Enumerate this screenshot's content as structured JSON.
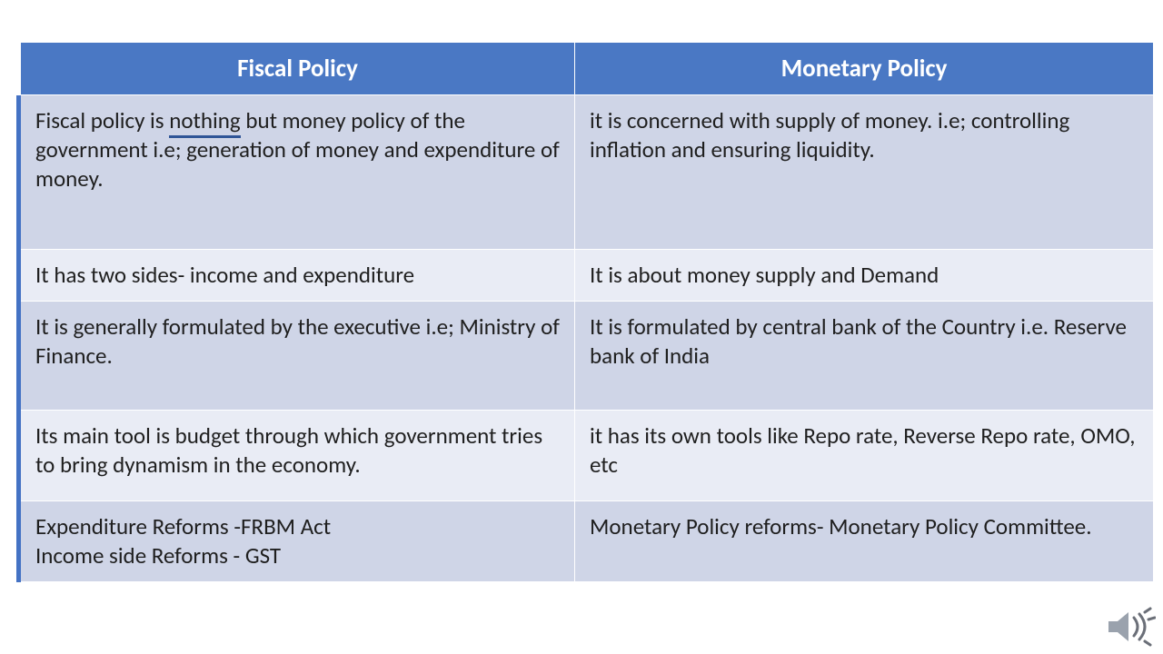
{
  "table": {
    "columns": [
      "Fiscal Policy",
      "Monetary Policy"
    ],
    "column_widths": [
      "49%",
      "51%"
    ],
    "header_bg": "#4a78c4",
    "header_fg": "#ffffff",
    "header_fontsize": 27,
    "body_fontsize": 25,
    "body_fg": "#1f1f1f",
    "row_bg_odd": "#cfd5e7",
    "row_bg_even": "#e9ecf5",
    "border_color": "#ffffff",
    "left_accent": "#4472c4",
    "rows": [
      {
        "fiscal": "Fiscal policy is nothing but money policy of the government i.e; generation of money and expenditure of money.",
        "monetary": "it is concerned with supply of money. i.e; controlling inflation and ensuring liquidity.",
        "min_height": 170
      },
      {
        "fiscal": "It has two sides- income and expenditure",
        "monetary": "It is about money supply and Demand",
        "min_height": 56
      },
      {
        "fiscal": "It is generally formulated by the executive i.e; Ministry of Finance.",
        "monetary": "It is formulated by central bank of the Country i.e. Reserve bank of India",
        "min_height": 120
      },
      {
        "fiscal": "Its main tool is budget through which government tries to bring dynamism in the economy.",
        "monetary": " it has its own tools like Repo rate, Reverse Repo rate, OMO, etc",
        "min_height": 100
      },
      {
        "fiscal": "Expenditure Reforms -FRBM Act\nIncome side Reforms - GST",
        "monetary": "Monetary Policy reforms- Monetary Policy Committee.",
        "min_height": 80
      }
    ]
  },
  "underline": {
    "word": "nothing",
    "color": "#2f5597",
    "thickness": 3
  },
  "speaker_icon": {
    "fill": "#9aa2ad",
    "waves": "#6b6f78"
  }
}
